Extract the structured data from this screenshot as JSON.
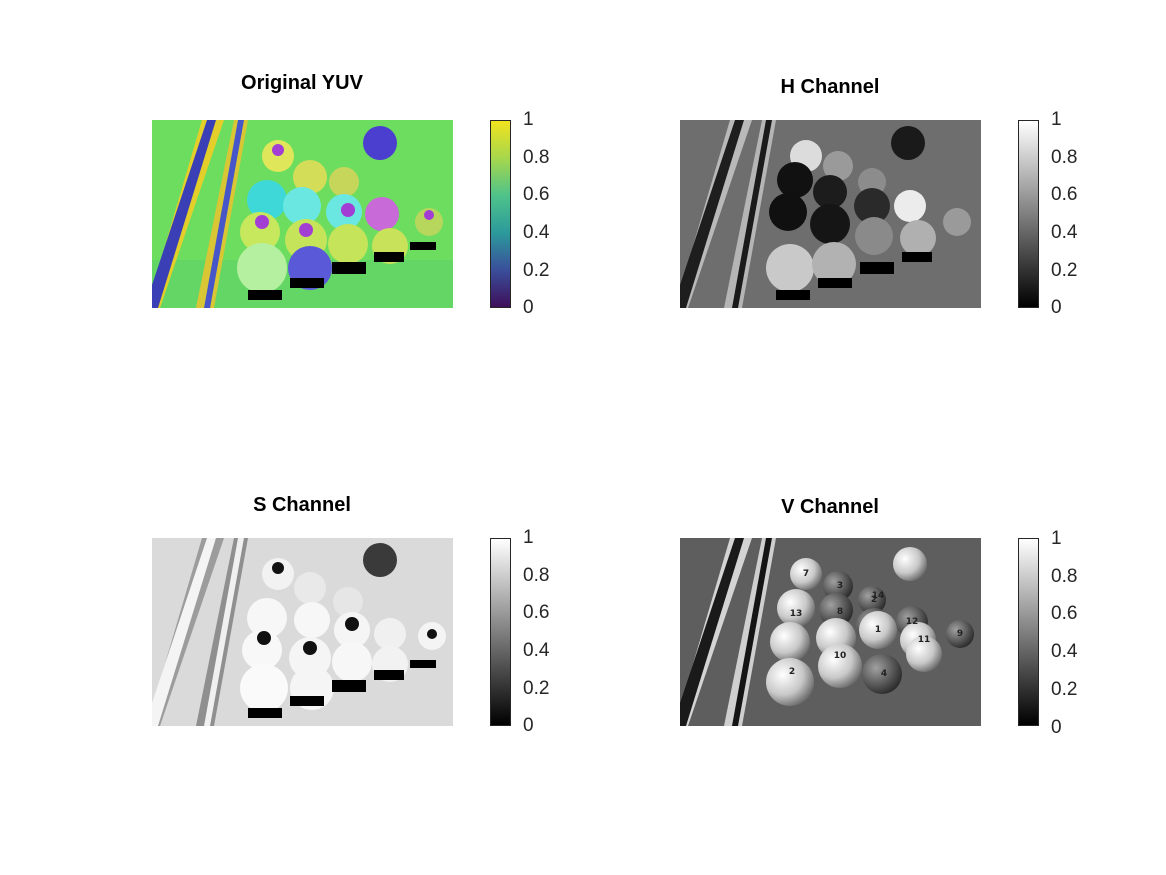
{
  "chart_data": [
    {
      "type": "heatmap",
      "title": "Original YUV",
      "colormap": "parula",
      "colorbar": {
        "ticks": [
          "0",
          "0.2",
          "0.4",
          "0.6",
          "0.8",
          "1"
        ],
        "range": [
          0,
          1
        ],
        "colors": [
          "#3e0f5a",
          "#3a4f9b",
          "#2c9a9b",
          "#4fc38a",
          "#a6d74c",
          "#f1e31e"
        ]
      },
      "dominant_color": "#66e05e"
    },
    {
      "type": "heatmap",
      "title": "H Channel",
      "colormap": "gray",
      "colorbar": {
        "ticks": [
          "0",
          "0.2",
          "0.4",
          "0.6",
          "0.8",
          "1"
        ],
        "range": [
          0,
          1
        ],
        "colors": [
          "#000000",
          "#ffffff"
        ]
      },
      "dominant_color": "#6e6e6e"
    },
    {
      "type": "heatmap",
      "title": "S Channel",
      "colormap": "gray",
      "colorbar": {
        "ticks": [
          "0",
          "0.2",
          "0.4",
          "0.6",
          "0.8",
          "1"
        ],
        "range": [
          0,
          1
        ],
        "colors": [
          "#000000",
          "#ffffff"
        ]
      },
      "dominant_color": "#d9d9d9"
    },
    {
      "type": "heatmap",
      "title": "V Channel",
      "colormap": "gray",
      "colorbar": {
        "ticks": [
          "0",
          "0.2",
          "0.4",
          "0.6",
          "0.8",
          "1"
        ],
        "range": [
          0,
          1
        ],
        "colors": [
          "#000000",
          "#ffffff"
        ]
      },
      "dominant_color": "#5e5e5e"
    }
  ],
  "ball_numbers": [
    "7",
    "3",
    "2",
    "14",
    "13",
    "1",
    "10",
    "11",
    "9",
    "12",
    "4",
    "2",
    "8"
  ]
}
